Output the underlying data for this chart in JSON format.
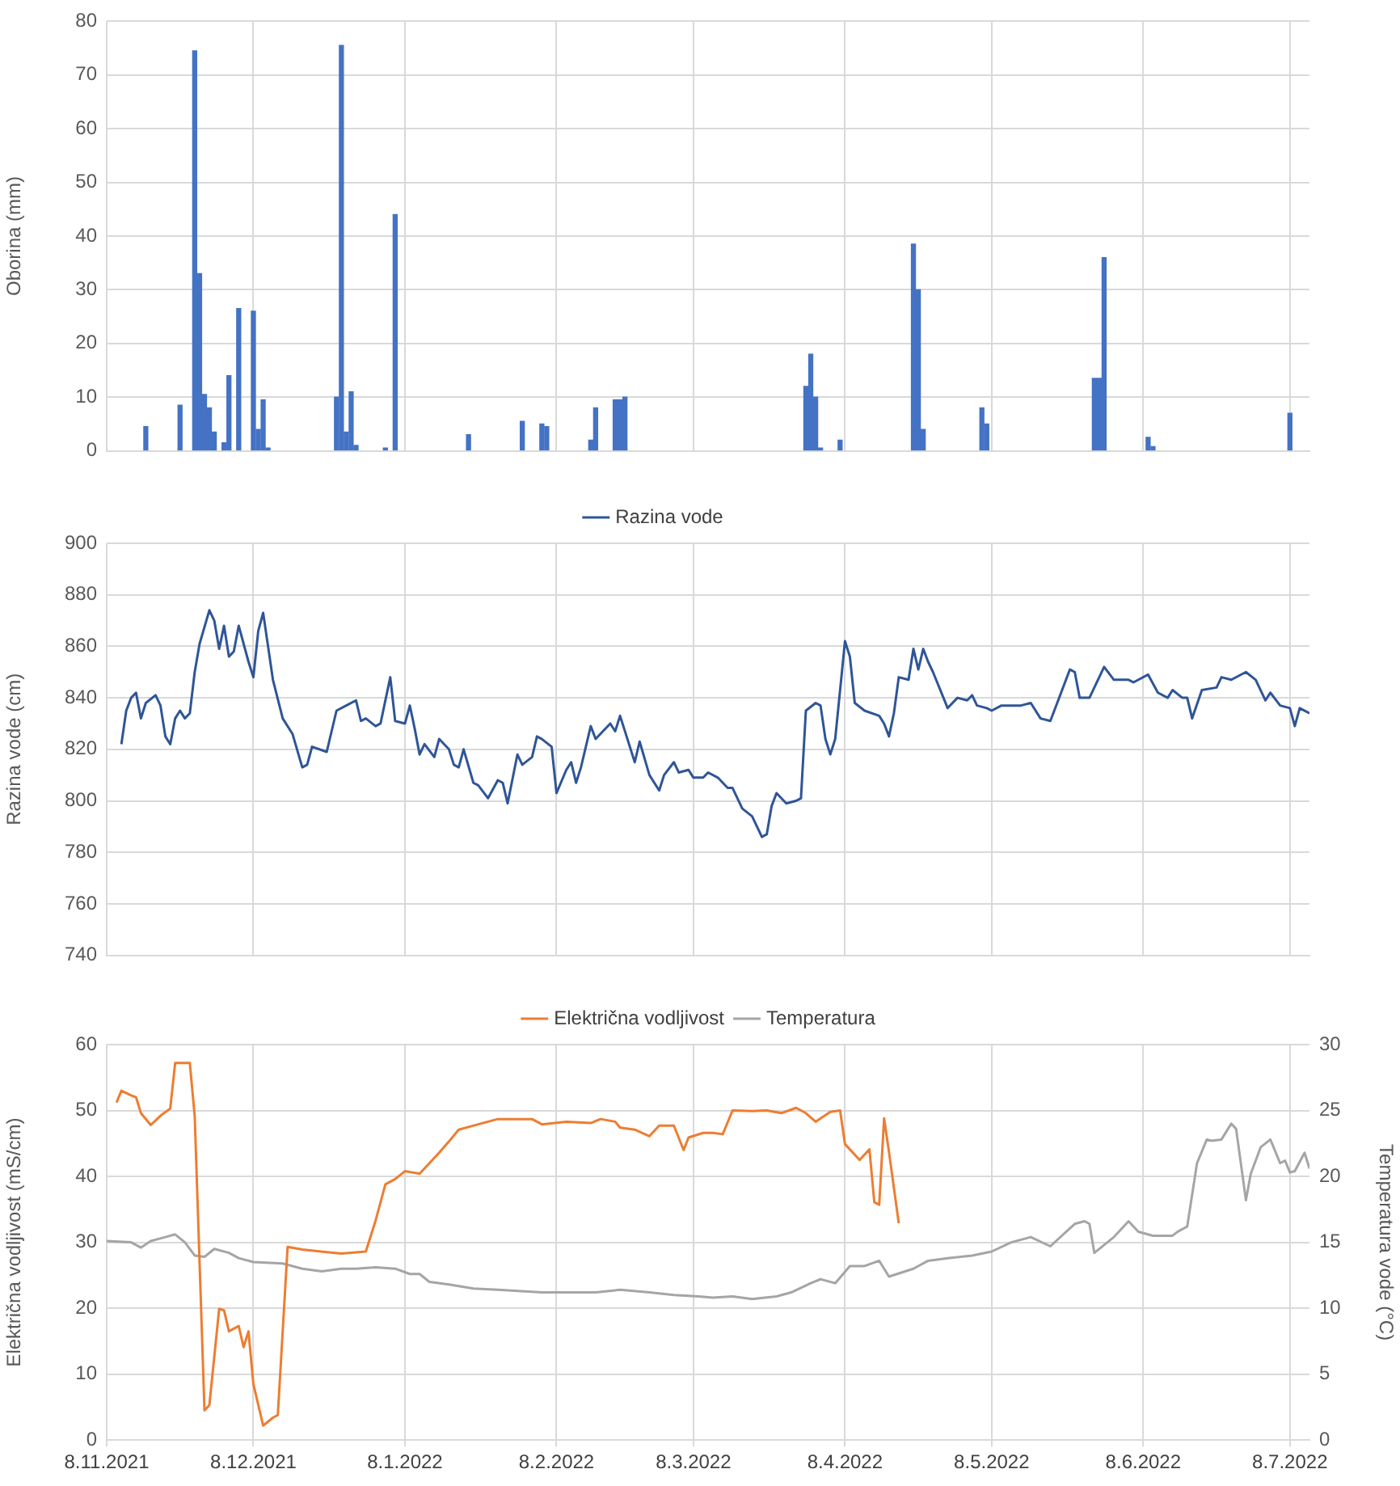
{
  "chart_data": [
    {
      "type": "bar",
      "ylabel": "Oborina (mm)",
      "color": "#4472c4",
      "grid": true,
      "tick_labels": "y",
      "xlim": [
        "2021-11-08",
        "2022-07-12"
      ],
      "xticks": [
        {
          "value": "2021-11-08",
          "label": null
        },
        {
          "value": "2021-12-08",
          "label": null
        },
        {
          "value": "2022-01-08",
          "label": null
        },
        {
          "value": "2022-02-08",
          "label": null
        },
        {
          "value": "2022-03-08",
          "label": null
        },
        {
          "value": "2022-04-08",
          "label": null
        },
        {
          "value": "2022-05-08",
          "label": null
        },
        {
          "value": "2022-06-08",
          "label": null
        },
        {
          "value": "2022-07-08",
          "label": null
        }
      ],
      "ylim": [
        0,
        80
      ],
      "yticks": [
        0,
        10,
        20,
        30,
        40,
        50,
        60,
        70,
        80
      ],
      "x": [
        "2021-11-16",
        "2021-11-23",
        "2021-11-26",
        "2021-11-27",
        "2021-11-28",
        "2021-11-29",
        "2021-11-30",
        "2021-12-02",
        "2021-12-03",
        "2021-12-05",
        "2021-12-08",
        "2021-12-09",
        "2021-12-10",
        "2021-12-11",
        "2021-12-25",
        "2021-12-26",
        "2021-12-27",
        "2021-12-28",
        "2021-12-29",
        "2022-01-04",
        "2022-01-06",
        "2022-01-21",
        "2022-02-01",
        "2022-02-05",
        "2022-02-06",
        "2022-02-15",
        "2022-02-16",
        "2022-02-20",
        "2022-02-21",
        "2022-02-22",
        "2022-03-31",
        "2022-04-01",
        "2022-04-02",
        "2022-04-03",
        "2022-04-07",
        "2022-04-22",
        "2022-04-23",
        "2022-04-24",
        "2022-05-06",
        "2022-05-07",
        "2022-05-29",
        "2022-05-30",
        "2022-05-31",
        "2022-06-09",
        "2022-06-10",
        "2022-07-08"
      ],
      "values": [
        4.5,
        8.5,
        74.5,
        33,
        10.5,
        8,
        3.5,
        1.5,
        14,
        26.5,
        26,
        4,
        9.5,
        0.5,
        10,
        75.5,
        3.5,
        11,
        1,
        0.5,
        44,
        3,
        5.5,
        5,
        4.5,
        2,
        8,
        9.5,
        9.5,
        10,
        12,
        18,
        10,
        0.5,
        2,
        38.5,
        30,
        4,
        8,
        5,
        13.5,
        13.5,
        36,
        2.5,
        0.8,
        7
      ]
    },
    {
      "type": "line",
      "ylabel": "Razina vode (cm)",
      "grid": true,
      "tick_labels": "y",
      "legend": "top",
      "xlim": [
        "2021-11-08",
        "2022-07-12"
      ],
      "xticks": [
        {
          "value": "2021-11-08",
          "label": null
        },
        {
          "value": "2021-12-08",
          "label": null
        },
        {
          "value": "2022-01-08",
          "label": null
        },
        {
          "value": "2022-02-08",
          "label": null
        },
        {
          "value": "2022-03-08",
          "label": null
        },
        {
          "value": "2022-04-08",
          "label": null
        },
        {
          "value": "2022-05-08",
          "label": null
        },
        {
          "value": "2022-06-08",
          "label": null
        },
        {
          "value": "2022-07-08",
          "label": null
        }
      ],
      "ylim": [
        740,
        900
      ],
      "yticks": [
        740,
        760,
        780,
        800,
        820,
        840,
        860,
        880,
        900
      ],
      "series": [
        {
          "name": "Razina vode",
          "color": "#2f5597",
          "x": [
            "2021-11-11",
            "2021-11-12",
            "2021-11-13",
            "2021-11-14",
            "2021-11-15",
            "2021-11-16",
            "2021-11-18",
            "2021-11-19",
            "2021-11-20",
            "2021-11-21",
            "2021-11-22",
            "2021-11-23",
            "2021-11-24",
            "2021-11-25",
            "2021-11-26",
            "2021-11-27",
            "2021-11-29",
            "2021-11-30",
            "2021-12-01",
            "2021-12-02",
            "2021-12-03",
            "2021-12-04",
            "2021-12-05",
            "2021-12-07",
            "2021-12-08",
            "2021-12-09",
            "2021-12-10",
            "2021-12-11",
            "2021-12-12",
            "2021-12-14",
            "2021-12-16",
            "2021-12-18",
            "2021-12-19",
            "2021-12-20",
            "2021-12-23",
            "2021-12-25",
            "2021-12-27",
            "2021-12-29",
            "2021-12-30",
            "2021-12-31",
            "2022-01-02",
            "2022-01-03",
            "2022-01-05",
            "2022-01-06",
            "2022-01-08",
            "2022-01-09",
            "2022-01-10",
            "2022-01-11",
            "2022-01-12",
            "2022-01-14",
            "2022-01-15",
            "2022-01-17",
            "2022-01-18",
            "2022-01-19",
            "2022-01-20",
            "2022-01-22",
            "2022-01-23",
            "2022-01-25",
            "2022-01-27",
            "2022-01-28",
            "2022-01-29",
            "2022-01-31",
            "2022-02-01",
            "2022-02-03",
            "2022-02-04",
            "2022-02-05",
            "2022-02-07",
            "2022-02-08",
            "2022-02-10",
            "2022-02-11",
            "2022-02-12",
            "2022-02-13",
            "2022-02-15",
            "2022-02-16",
            "2022-02-18",
            "2022-02-19",
            "2022-02-20",
            "2022-02-21",
            "2022-02-23",
            "2022-02-24",
            "2022-02-25",
            "2022-02-27",
            "2022-03-01",
            "2022-03-02",
            "2022-03-04",
            "2022-03-05",
            "2022-03-07",
            "2022-03-08",
            "2022-03-10",
            "2022-03-11",
            "2022-03-13",
            "2022-03-15",
            "2022-03-16",
            "2022-03-18",
            "2022-03-20",
            "2022-03-22",
            "2022-03-23",
            "2022-03-24",
            "2022-03-25",
            "2022-03-27",
            "2022-03-29",
            "2022-03-30",
            "2022-03-31",
            "2022-04-02",
            "2022-04-03",
            "2022-04-04",
            "2022-04-05",
            "2022-04-06",
            "2022-04-08",
            "2022-04-09",
            "2022-04-10",
            "2022-04-12",
            "2022-04-15",
            "2022-04-16",
            "2022-04-17",
            "2022-04-18",
            "2022-04-19",
            "2022-04-21",
            "2022-04-22",
            "2022-04-23",
            "2022-04-24",
            "2022-04-25",
            "2022-04-26",
            "2022-04-29",
            "2022-05-01",
            "2022-05-03",
            "2022-05-04",
            "2022-05-05",
            "2022-05-07",
            "2022-05-08",
            "2022-05-10",
            "2022-05-12",
            "2022-05-14",
            "2022-05-16",
            "2022-05-18",
            "2022-05-20",
            "2022-05-22",
            "2022-05-24",
            "2022-05-25",
            "2022-05-26",
            "2022-05-28",
            "2022-05-31",
            "2022-06-02",
            "2022-06-05",
            "2022-06-06",
            "2022-06-09",
            "2022-06-11",
            "2022-06-13",
            "2022-06-14",
            "2022-06-16",
            "2022-06-17",
            "2022-06-18",
            "2022-06-20",
            "2022-06-23",
            "2022-06-24",
            "2022-06-26",
            "2022-06-29",
            "2022-07-01",
            "2022-07-03",
            "2022-07-04",
            "2022-07-06",
            "2022-07-08",
            "2022-07-09",
            "2022-07-10",
            "2022-07-12"
          ],
          "values": [
            822,
            835,
            840,
            842,
            832,
            838,
            841,
            837,
            825,
            822,
            832,
            835,
            832,
            834,
            850,
            861,
            874,
            870,
            859,
            868,
            856,
            858,
            868,
            854,
            848,
            866,
            873,
            860,
            847,
            832,
            826,
            813,
            814,
            821,
            819,
            835,
            837,
            839,
            831,
            832,
            829,
            830,
            848,
            831,
            830,
            837,
            828,
            818,
            822,
            817,
            824,
            820,
            814,
            813,
            820,
            807,
            806,
            801,
            808,
            807,
            799,
            818,
            814,
            817,
            825,
            824,
            821,
            803,
            812,
            815,
            807,
            813,
            829,
            824,
            828,
            830,
            827,
            833,
            821,
            815,
            823,
            810,
            804,
            810,
            815,
            811,
            812,
            809,
            809,
            811,
            809,
            805,
            805,
            797,
            794,
            786,
            787,
            798,
            803,
            799,
            800,
            801,
            835,
            838,
            837,
            824,
            818,
            824,
            862,
            856,
            838,
            835,
            833,
            830,
            825,
            834,
            848,
            847,
            859,
            851,
            859,
            854,
            850,
            836,
            840,
            839,
            841,
            837,
            836,
            835,
            837,
            837,
            837,
            838,
            832,
            831,
            841,
            851,
            850,
            840,
            840,
            852,
            847,
            847,
            846,
            849,
            842,
            840,
            843,
            840,
            840,
            832,
            843,
            844,
            848,
            847,
            850,
            847,
            839,
            842,
            837,
            836,
            829,
            836,
            834
          ]
        }
      ]
    },
    {
      "type": "line",
      "ylabel": "Električna vodljivost (mS/cm)",
      "y2label": "Temperatura vode (°C)",
      "grid": true,
      "legend": "top",
      "xlim": [
        "2021-11-08",
        "2022-07-12"
      ],
      "xticks": [
        {
          "value": "2021-11-08",
          "label": "8.11.2021"
        },
        {
          "value": "2021-12-08",
          "label": "8.12.2021"
        },
        {
          "value": "2022-01-08",
          "label": "8.1.2022"
        },
        {
          "value": "2022-02-08",
          "label": "8.2.2022"
        },
        {
          "value": "2022-03-08",
          "label": "8.3.2022"
        },
        {
          "value": "2022-04-08",
          "label": "8.4.2022"
        },
        {
          "value": "2022-05-08",
          "label": "8.5.2022"
        },
        {
          "value": "2022-06-08",
          "label": "8.6.2022"
        },
        {
          "value": "2022-07-08",
          "label": "8.7.2022"
        }
      ],
      "ylim": [
        0,
        60
      ],
      "yticks": [
        0,
        10,
        20,
        30,
        40,
        50,
        60
      ],
      "y2lim": [
        0,
        30
      ],
      "y2ticks": [
        0,
        5,
        10,
        15,
        20,
        25,
        30
      ],
      "series": [
        {
          "name": "Električna vodljivost",
          "color": "#ed7d31",
          "x": [
            "2021-11-10",
            "2021-11-11",
            "2021-11-13",
            "2021-11-14",
            "2021-11-15",
            "2021-11-17",
            "2021-11-19",
            "2021-11-21",
            "2021-11-22",
            "2021-11-25",
            "2021-11-26",
            "2021-11-28",
            "2021-11-29",
            "2021-12-01",
            "2021-12-02",
            "2021-12-03",
            "2021-12-05",
            "2021-12-06",
            "2021-12-07",
            "2021-12-08",
            "2021-12-10",
            "2021-12-12",
            "2021-12-13",
            "2021-12-15",
            "2021-12-18",
            "2021-12-23",
            "2021-12-26",
            "2021-12-31",
            "2022-01-02",
            "2022-01-04",
            "2022-01-06",
            "2022-01-08",
            "2022-01-11",
            "2022-01-13",
            "2022-01-15",
            "2022-01-17",
            "2022-01-19",
            "2022-01-23",
            "2022-01-27",
            "2022-02-03",
            "2022-02-05",
            "2022-02-10",
            "2022-02-15",
            "2022-02-17",
            "2022-02-20",
            "2022-02-21",
            "2022-02-24",
            "2022-02-27",
            "2022-03-01",
            "2022-03-04",
            "2022-03-06",
            "2022-03-07",
            "2022-03-10",
            "2022-03-12",
            "2022-03-14",
            "2022-03-16",
            "2022-03-20",
            "2022-03-23",
            "2022-03-26",
            "2022-03-29",
            "2022-03-31",
            "2022-04-02",
            "2022-04-05",
            "2022-04-07",
            "2022-04-08",
            "2022-04-09",
            "2022-04-11",
            "2022-04-13",
            "2022-04-14",
            "2022-04-15",
            "2022-04-16",
            "2022-04-17",
            "2022-04-19"
          ],
          "values": [
            51.2,
            53,
            52.3,
            52,
            49.6,
            47.8,
            49.2,
            50.3,
            57.2,
            57.2,
            49.2,
            4.5,
            5.3,
            19.9,
            19.7,
            16.5,
            17.3,
            14.1,
            16.5,
            8.5,
            2.2,
            3.4,
            3.8,
            29.3,
            28.9,
            28.5,
            28.3,
            28.6,
            33.3,
            38.8,
            39.6,
            40.8,
            40.4,
            42,
            43.6,
            45.3,
            47.1,
            47.9,
            48.7,
            48.7,
            47.9,
            48.3,
            48.1,
            48.7,
            48.3,
            47.4,
            47.1,
            46.1,
            47.7,
            47.7,
            44,
            45.9,
            46.6,
            46.6,
            46.4,
            50,
            49.9,
            50,
            49.6,
            50.4,
            49.6,
            48.3,
            49.8,
            50,
            44.9,
            44.1,
            42.5,
            44.1,
            36.1,
            35.7,
            48.8,
            43.7,
            32.9
          ]
        },
        {
          "name": "Temperatura",
          "color": "#a5a5a5",
          "axis": "y2",
          "x": [
            "2021-11-08",
            "2021-11-13",
            "2021-11-15",
            "2021-11-17",
            "2021-11-20",
            "2021-11-22",
            "2021-11-24",
            "2021-11-26",
            "2021-11-28",
            "2021-11-30",
            "2021-12-03",
            "2021-12-05",
            "2021-12-08",
            "2021-12-14",
            "2021-12-18",
            "2021-12-22",
            "2021-12-26",
            "2021-12-29",
            "2022-01-02",
            "2022-01-06",
            "2022-01-09",
            "2022-01-11",
            "2022-01-13",
            "2022-01-17",
            "2022-01-22",
            "2022-01-27",
            "2022-02-05",
            "2022-02-11",
            "2022-02-16",
            "2022-02-21",
            "2022-02-27",
            "2022-03-04",
            "2022-03-09",
            "2022-03-12",
            "2022-03-16",
            "2022-03-20",
            "2022-03-25",
            "2022-03-28",
            "2022-04-01",
            "2022-04-03",
            "2022-04-06",
            "2022-04-09",
            "2022-04-12",
            "2022-04-15",
            "2022-04-17",
            "2022-04-22",
            "2022-04-25",
            "2022-04-29",
            "2022-05-04",
            "2022-05-08",
            "2022-05-12",
            "2022-05-16",
            "2022-05-20",
            "2022-05-25",
            "2022-05-27",
            "2022-05-28",
            "2022-05-29",
            "2022-06-02",
            "2022-06-05",
            "2022-06-07",
            "2022-06-10",
            "2022-06-14",
            "2022-06-15",
            "2022-06-17",
            "2022-06-19",
            "2022-06-21",
            "2022-06-22",
            "2022-06-24",
            "2022-06-26",
            "2022-06-27",
            "2022-06-29",
            "2022-06-30",
            "2022-07-02",
            "2022-07-04",
            "2022-07-06",
            "2022-07-07",
            "2022-07-08",
            "2022-07-09",
            "2022-07-11",
            "2022-07-12"
          ],
          "values": [
            15.1,
            15,
            14.6,
            15.1,
            15.4,
            15.6,
            15,
            14,
            13.9,
            14.5,
            14.2,
            13.8,
            13.5,
            13.4,
            13,
            12.8,
            13,
            13,
            13.1,
            13,
            12.6,
            12.6,
            12,
            11.8,
            11.5,
            11.4,
            11.2,
            11.2,
            11.2,
            11.4,
            11.2,
            11,
            10.9,
            10.8,
            10.9,
            10.7,
            10.9,
            11.2,
            11.9,
            12.2,
            11.9,
            13.2,
            13.2,
            13.6,
            12.4,
            13,
            13.6,
            13.8,
            14,
            14.3,
            15,
            15.4,
            14.7,
            16.4,
            16.6,
            16.4,
            14.2,
            15.4,
            16.6,
            15.8,
            15.5,
            15.5,
            15.8,
            16.2,
            21,
            22.8,
            22.7,
            22.8,
            24,
            23.6,
            18.2,
            20.2,
            22.2,
            22.8,
            21,
            21.2,
            20.3,
            20.4,
            21.8,
            20.6
          ]
        }
      ]
    }
  ]
}
